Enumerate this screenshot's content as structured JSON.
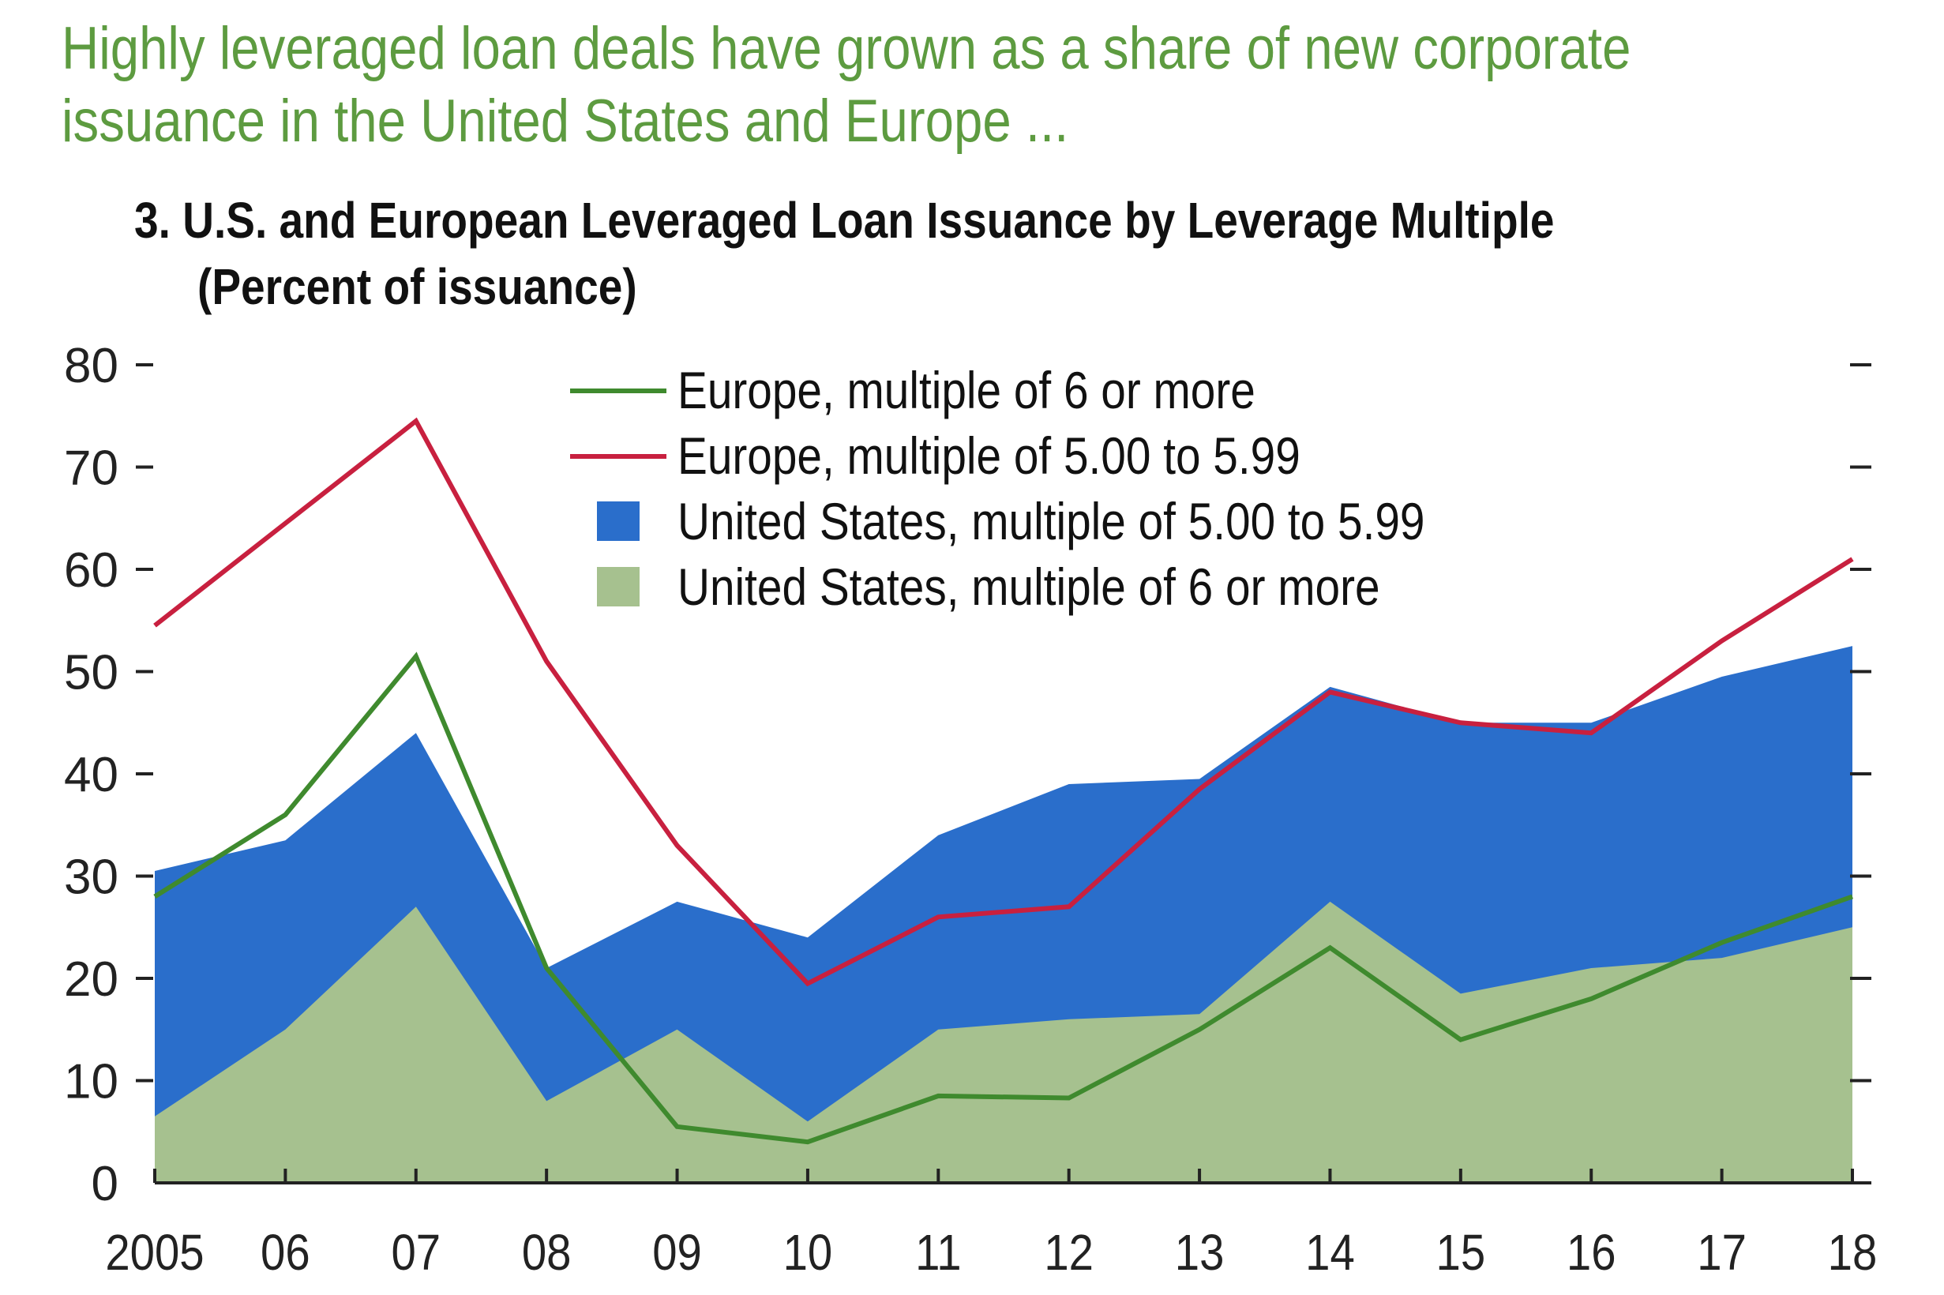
{
  "headline": "Highly leveraged loan deals have grown as a share of new corporate issuance in the United States and Europe ...",
  "chart_data": {
    "type": "area",
    "title": "3. U.S. and European Leveraged Loan Issuance by Leverage Multiple",
    "subtitle": "(Percent of issuance)",
    "xlabel": "",
    "ylabel": "",
    "x": [
      "2005",
      "06",
      "07",
      "08",
      "09",
      "10",
      "11",
      "12",
      "13",
      "14",
      "15",
      "16",
      "17",
      "18"
    ],
    "ylim": [
      0,
      80
    ],
    "yticks": [
      0,
      10,
      20,
      30,
      40,
      50,
      60,
      70,
      80
    ],
    "grid": false,
    "legend_position": "top-center",
    "series": [
      {
        "name": "Europe, multiple of 6 or more",
        "kind": "line",
        "color": "#3f8a2e",
        "values": [
          28,
          36,
          51.5,
          21,
          5.5,
          4,
          8.5,
          8.3,
          15,
          23,
          14,
          18,
          23.5,
          28
        ]
      },
      {
        "name": "Europe, multiple of 5.00 to 5.99",
        "kind": "line",
        "color": "#c8203f",
        "values": [
          54.5,
          64.5,
          74.5,
          51,
          33,
          19.5,
          26,
          27,
          38.5,
          48,
          45,
          44,
          53,
          61
        ]
      },
      {
        "name": "United States, multiple of 5.00 to 5.99",
        "kind": "area",
        "color": "#2a6ecb",
        "values": [
          30.5,
          33.5,
          44,
          21,
          27.5,
          24,
          34,
          39,
          39.5,
          48.5,
          45,
          45,
          49.5,
          52.5
        ]
      },
      {
        "name": "United States, multiple of 6 or more",
        "kind": "area",
        "color": "#a6c18f",
        "values": [
          6.5,
          15,
          27,
          8,
          15,
          6,
          15,
          16,
          16.5,
          27.5,
          18.5,
          21,
          22,
          25
        ]
      }
    ]
  }
}
